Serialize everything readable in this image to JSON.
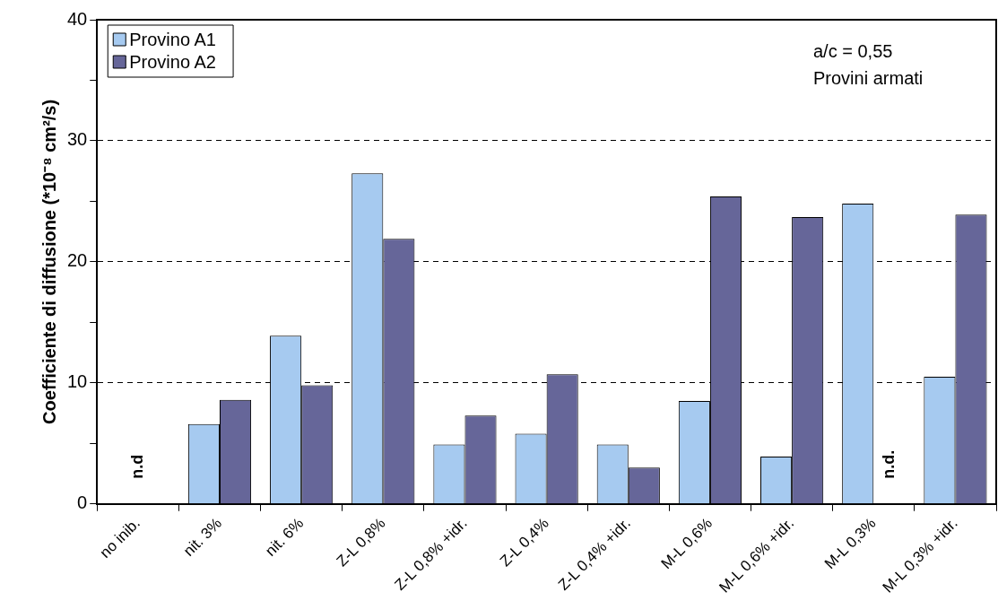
{
  "chart_data": {
    "type": "bar",
    "ylabel": "Coefficiente di diffusione (*10⁻⁸ cm²/s)",
    "categories": [
      "no inib.",
      "nit. 3%",
      "nit. 6%",
      "Z-L 0,8%",
      "Z-L 0,8% +idr.",
      "Z-L 0,4%",
      "Z-L 0,4% +idr.",
      "M-L 0,6%",
      "M-L 0,6% +idr.",
      "M-L 0,3%",
      "M-L 0,3% +idr."
    ],
    "series": [
      {
        "name": "Provino A1",
        "color": "#a6caf0",
        "values": [
          null,
          6.6,
          13.9,
          27.3,
          4.9,
          5.8,
          4.9,
          8.5,
          3.9,
          24.8,
          10.5
        ]
      },
      {
        "name": "Provino A2",
        "color": "#666699",
        "values": [
          null,
          8.6,
          9.8,
          21.9,
          7.3,
          10.7,
          3.0,
          25.4,
          23.7,
          null,
          23.9
        ]
      }
    ],
    "ylim": [
      0,
      40
    ],
    "yticks": [
      0,
      {
        "value": 5,
        "label": null
      },
      10,
      {
        "value": 15,
        "label": null
      },
      20,
      {
        "value": 25,
        "label": null
      },
      30,
      {
        "value": 35,
        "label": null
      },
      40
    ],
    "grid": "y",
    "legend": "top left",
    "annotations": [
      "n.d",
      "n.d.",
      "a/c = 0,55",
      "Provini armati"
    ]
  }
}
